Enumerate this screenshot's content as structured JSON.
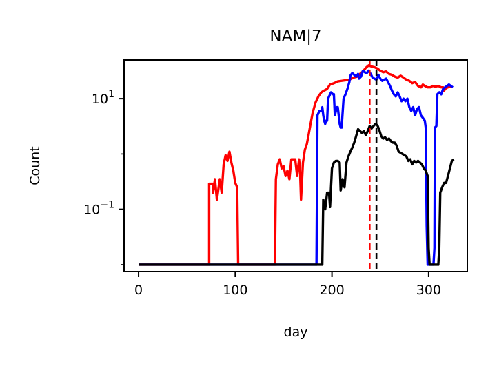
{
  "chart_data": {
    "type": "line",
    "title": "NAM|7",
    "xlabel": "day",
    "ylabel": "Count",
    "yscale": "log",
    "xlim": [
      -15,
      340
    ],
    "ylim": [
      0.0075,
      50
    ],
    "x_ticks": [
      0,
      100,
      200,
      300
    ],
    "y_ticks": [
      {
        "value": 10,
        "base": "10",
        "exponent": "1"
      },
      {
        "value": 0.1,
        "base": "10",
        "exponent": "−1"
      }
    ],
    "legend": "none",
    "grid": false,
    "series": [
      {
        "color": "#ff0000",
        "points": [
          [
            0,
            0.01
          ],
          [
            73,
            0.01
          ],
          [
            73,
            0.29
          ],
          [
            77,
            0.29
          ],
          [
            77,
            0.2
          ],
          [
            79,
            0.35
          ],
          [
            81,
            0.15
          ],
          [
            84,
            0.35
          ],
          [
            86,
            0.2
          ],
          [
            88,
            0.65
          ],
          [
            90,
            0.95
          ],
          [
            92,
            0.75
          ],
          [
            94,
            1.1
          ],
          [
            96,
            0.7
          ],
          [
            98,
            0.5
          ],
          [
            100,
            0.3
          ],
          [
            102,
            0.25
          ],
          [
            103,
            0.01
          ],
          [
            141,
            0.01
          ],
          [
            142,
            0.35
          ],
          [
            144,
            0.65
          ],
          [
            146,
            0.8
          ],
          [
            148,
            0.55
          ],
          [
            150,
            0.6
          ],
          [
            152,
            0.4
          ],
          [
            154,
            0.5
          ],
          [
            156,
            0.35
          ],
          [
            158,
            0.8
          ],
          [
            162,
            0.8
          ],
          [
            164,
            0.4
          ],
          [
            166,
            0.8
          ],
          [
            167,
            0.5
          ],
          [
            168,
            0.15
          ],
          [
            170,
            0.7
          ],
          [
            172,
            1.2
          ],
          [
            174,
            1.5
          ],
          [
            176,
            2.3
          ],
          [
            178,
            3.6
          ],
          [
            180,
            5.5
          ],
          [
            183,
            8.5
          ],
          [
            186,
            11
          ],
          [
            189,
            13
          ],
          [
            192,
            14
          ],
          [
            195,
            15
          ],
          [
            198,
            18
          ],
          [
            202,
            19
          ],
          [
            206,
            20.5
          ],
          [
            210,
            21
          ],
          [
            214,
            21.5
          ],
          [
            218,
            22
          ],
          [
            222,
            24
          ],
          [
            226,
            25
          ],
          [
            229,
            28
          ],
          [
            232,
            31
          ],
          [
            235,
            36
          ],
          [
            238,
            40
          ],
          [
            241,
            38
          ],
          [
            244,
            37
          ],
          [
            247,
            35
          ],
          [
            250,
            32
          ],
          [
            253,
            30
          ],
          [
            256,
            31
          ],
          [
            259,
            28
          ],
          [
            262,
            27
          ],
          [
            265,
            25
          ],
          [
            268,
            24
          ],
          [
            271,
            26
          ],
          [
            274,
            24
          ],
          [
            277,
            22
          ],
          [
            280,
            21
          ],
          [
            283,
            19
          ],
          [
            286,
            20
          ],
          [
            289,
            17
          ],
          [
            292,
            16
          ],
          [
            294,
            18
          ],
          [
            296,
            17
          ],
          [
            299,
            16
          ],
          [
            302,
            16
          ],
          [
            304,
            17
          ],
          [
            307,
            16.5
          ],
          [
            310,
            17
          ],
          [
            313,
            16
          ],
          [
            315,
            16
          ],
          [
            316,
            14
          ],
          [
            318,
            15.5
          ],
          [
            320,
            16
          ],
          [
            322,
            16.5
          ],
          [
            324,
            16
          ]
        ]
      },
      {
        "color": "#0000ff",
        "points": [
          [
            0,
            0.01
          ],
          [
            184,
            0.01
          ],
          [
            185,
            5
          ],
          [
            187,
            6
          ],
          [
            189,
            6
          ],
          [
            190,
            7
          ],
          [
            191,
            5
          ],
          [
            192,
            4
          ],
          [
            193,
            3.5
          ],
          [
            194,
            4
          ],
          [
            195,
            4
          ],
          [
            196,
            10
          ],
          [
            199,
            13
          ],
          [
            201,
            12
          ],
          [
            202,
            12
          ],
          [
            203,
            5
          ],
          [
            205,
            7
          ],
          [
            206,
            7
          ],
          [
            207,
            5
          ],
          [
            208,
            3.5
          ],
          [
            209,
            3
          ],
          [
            210,
            3
          ],
          [
            212,
            10
          ],
          [
            214,
            12
          ],
          [
            216,
            15
          ],
          [
            218,
            20
          ],
          [
            219,
            26
          ],
          [
            221,
            29
          ],
          [
            223,
            27
          ],
          [
            225,
            25
          ],
          [
            227,
            28
          ],
          [
            228,
            23
          ],
          [
            230,
            25
          ],
          [
            232,
            32
          ],
          [
            234,
            30
          ],
          [
            236,
            29
          ],
          [
            238,
            32
          ],
          [
            240,
            28
          ],
          [
            242,
            24
          ],
          [
            244,
            23
          ],
          [
            246,
            22
          ],
          [
            248,
            27
          ],
          [
            250,
            23
          ],
          [
            252,
            21
          ],
          [
            254,
            22
          ],
          [
            256,
            23
          ],
          [
            258,
            20
          ],
          [
            260,
            17
          ],
          [
            262,
            14
          ],
          [
            264,
            12
          ],
          [
            266,
            11
          ],
          [
            268,
            13
          ],
          [
            270,
            11
          ],
          [
            272,
            9
          ],
          [
            274,
            10
          ],
          [
            276,
            9
          ],
          [
            278,
            10
          ],
          [
            280,
            7
          ],
          [
            282,
            6
          ],
          [
            284,
            7
          ],
          [
            286,
            5
          ],
          [
            288,
            6.5
          ],
          [
            290,
            7
          ],
          [
            292,
            5
          ],
          [
            294,
            4.5
          ],
          [
            296,
            4
          ],
          [
            297,
            3
          ],
          [
            298,
            0.05
          ],
          [
            299,
            0.01
          ],
          [
            305,
            0.01
          ],
          [
            306,
            0.02
          ],
          [
            306.5,
            3
          ],
          [
            308,
            3.2
          ],
          [
            309,
            12
          ],
          [
            311,
            13
          ],
          [
            313,
            12
          ],
          [
            315,
            15
          ],
          [
            317,
            16
          ],
          [
            319,
            17
          ],
          [
            321,
            18
          ],
          [
            323,
            17
          ],
          [
            325,
            16
          ]
        ]
      },
      {
        "color": "#000000",
        "points": [
          [
            0,
            0.01
          ],
          [
            190,
            0.01
          ],
          [
            191,
            0.15
          ],
          [
            193,
            0.1
          ],
          [
            195,
            0.2
          ],
          [
            197,
            0.2
          ],
          [
            198,
            0.11
          ],
          [
            200,
            0.55
          ],
          [
            202,
            0.7
          ],
          [
            204,
            0.75
          ],
          [
            206,
            0.75
          ],
          [
            208,
            0.7
          ],
          [
            209,
            0.22
          ],
          [
            211,
            0.35
          ],
          [
            213,
            0.25
          ],
          [
            215,
            0.7
          ],
          [
            217,
            0.9
          ],
          [
            219,
            1.1
          ],
          [
            221,
            1.3
          ],
          [
            223,
            1.6
          ],
          [
            225,
            2.1
          ],
          [
            227,
            2.8
          ],
          [
            229,
            2.6
          ],
          [
            231,
            2.4
          ],
          [
            233,
            2.6
          ],
          [
            235,
            2.2
          ],
          [
            237,
            2.6
          ],
          [
            239,
            3.2
          ],
          [
            241,
            2.9
          ],
          [
            243,
            3.2
          ],
          [
            245,
            3.5
          ],
          [
            247,
            3.3
          ],
          [
            249,
            2.7
          ],
          [
            251,
            2.1
          ],
          [
            253,
            1.9
          ],
          [
            255,
            2.0
          ],
          [
            257,
            1.8
          ],
          [
            259,
            1.9
          ],
          [
            261,
            1.7
          ],
          [
            263,
            1.6
          ],
          [
            265,
            1.6
          ],
          [
            267,
            1.4
          ],
          [
            269,
            1.1
          ],
          [
            271,
            1.05
          ],
          [
            273,
            1.0
          ],
          [
            275,
            0.95
          ],
          [
            277,
            0.9
          ],
          [
            279,
            0.75
          ],
          [
            281,
            0.8
          ],
          [
            283,
            0.65
          ],
          [
            285,
            0.75
          ],
          [
            287,
            0.7
          ],
          [
            289,
            0.75
          ],
          [
            291,
            0.7
          ],
          [
            293,
            0.65
          ],
          [
            295,
            0.55
          ],
          [
            297,
            0.5
          ],
          [
            299,
            0.4
          ],
          [
            300,
            0.02
          ],
          [
            301,
            0.01
          ],
          [
            310,
            0.01
          ],
          [
            311,
            0.02
          ],
          [
            312,
            0.2
          ],
          [
            314,
            0.25
          ],
          [
            316,
            0.3
          ],
          [
            318,
            0.3
          ],
          [
            320,
            0.4
          ],
          [
            322,
            0.55
          ],
          [
            324,
            0.75
          ],
          [
            326,
            0.8
          ]
        ]
      }
    ],
    "vlines": [
      {
        "x": 239,
        "color": "#ff0000",
        "style": "dashed"
      },
      {
        "x": 246,
        "color": "#000000",
        "style": "dashed"
      }
    ]
  }
}
